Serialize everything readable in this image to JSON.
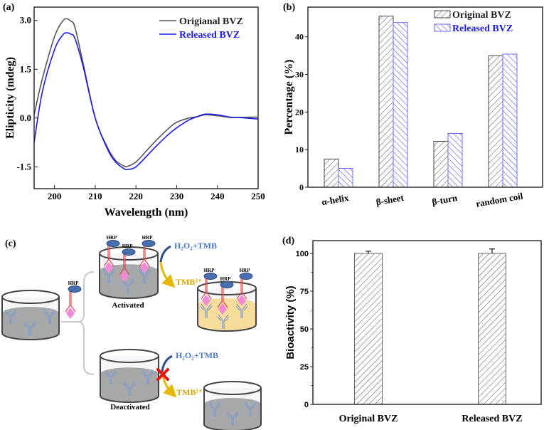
{
  "panel_labels": {
    "a": "(a)",
    "b": "(b)",
    "c": "(c)",
    "d": "(d)"
  },
  "chart_data": [
    {
      "id": "a",
      "type": "line",
      "xlabel": "Wavelength (nm)",
      "ylabel": "Elipticity (mdeg)",
      "xlim": [
        195,
        250
      ],
      "ylim": [
        -2.17,
        3.41
      ],
      "xticks": [
        200,
        210,
        220,
        230,
        240,
        250
      ],
      "yticks": [
        "3.0",
        "1.5",
        "0.0",
        "-1.5"
      ],
      "legend_position": "top-right",
      "series": [
        {
          "name": "Origianal BVZ",
          "color": "#555555",
          "x": [
            195,
            197,
            200,
            202,
            203,
            204,
            205,
            207,
            210,
            213,
            215,
            217,
            218,
            220,
            223,
            225,
            228,
            230,
            233,
            235,
            237,
            240,
            243,
            245,
            250
          ],
          "y": [
            0.1,
            1.2,
            2.5,
            2.98,
            3.05,
            2.98,
            2.8,
            1.7,
            0.0,
            -0.9,
            -1.3,
            -1.47,
            -1.48,
            -1.35,
            -0.95,
            -0.68,
            -0.32,
            -0.13,
            0.0,
            0.04,
            0.1,
            0.07,
            0.02,
            0.02,
            0.03
          ]
        },
        {
          "name": "Released BVZ",
          "color": "#1a1aee",
          "x": [
            195,
            197,
            200,
            202,
            203,
            204,
            205,
            207,
            210,
            213,
            215,
            217,
            218,
            220,
            223,
            225,
            228,
            230,
            233,
            235,
            237,
            240,
            243,
            245,
            250
          ],
          "y": [
            -0.75,
            0.8,
            2.1,
            2.55,
            2.62,
            2.58,
            2.45,
            1.6,
            0.0,
            -0.95,
            -1.35,
            -1.55,
            -1.58,
            -1.5,
            -1.12,
            -0.86,
            -0.5,
            -0.3,
            -0.06,
            0.04,
            0.12,
            0.1,
            0.03,
            0.02,
            -0.03
          ]
        }
      ]
    },
    {
      "id": "b",
      "type": "bar",
      "xlabel": "",
      "ylabel": "Percentage (%)",
      "ylim": [
        0,
        47.9
      ],
      "yticks": [
        0,
        10,
        20,
        30,
        40
      ],
      "categories": [
        "α-helix",
        "β-sheet",
        "β-turn",
        "random coil"
      ],
      "legend_position": "top-right",
      "series": [
        {
          "name": "Original BVZ",
          "color": "#444444",
          "values": [
            7.5,
            45.5,
            12.2,
            35.0
          ]
        },
        {
          "name": "Released BVZ",
          "color": "#3a3aee",
          "values": [
            5.0,
            43.8,
            14.3,
            35.4
          ]
        }
      ]
    },
    {
      "id": "d",
      "type": "bar",
      "xlabel": "",
      "ylabel": "Bioactivity (%)",
      "ylim": [
        0,
        108.5
      ],
      "yticks": [
        0,
        25,
        50,
        75,
        100
      ],
      "categories": [
        "Original BVZ",
        "Released BVZ"
      ],
      "values": [
        100,
        100
      ],
      "errors": [
        1.5,
        3.0
      ],
      "color": "#555555"
    }
  ],
  "diagram": {
    "hrp": "HRP",
    "activated": "Activated",
    "deactivated": "Deactivated",
    "reagent": "H₂O₂+TMB",
    "product": "TMB²⁺",
    "colors": {
      "reagent": "#4a78c8",
      "product": "#d9a400",
      "cross": "#ee1111",
      "antibody": "#7f9ccc",
      "hrp": "#4a6fb0",
      "antigen": "#f28ad6",
      "liquid": "#a7a8aa",
      "yellow": "#f7dd9c"
    }
  }
}
